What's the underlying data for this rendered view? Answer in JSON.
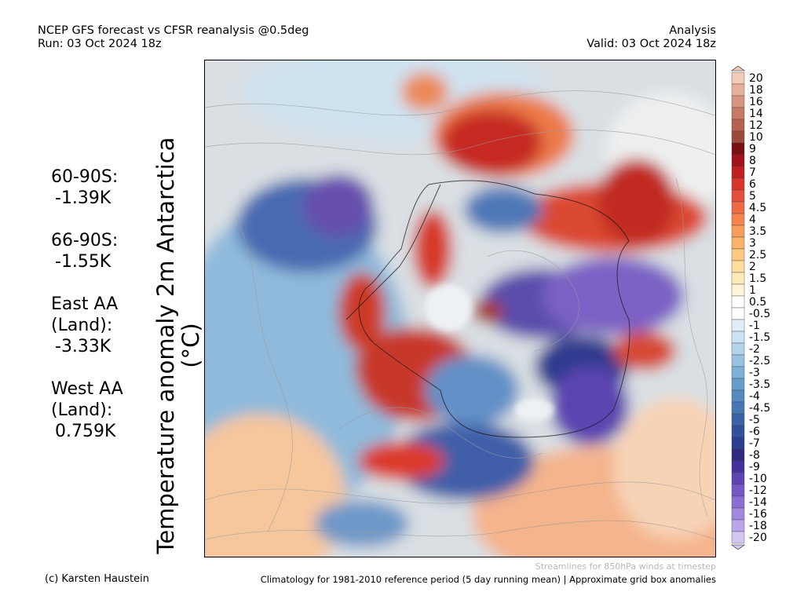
{
  "header": {
    "title_line1": "NCEP GFS forecast vs CFSR reanalysis @0.5deg",
    "title_line2": "Run: 03 Oct 2024 18z",
    "right_line1": "Analysis",
    "right_line2": "Valid: 03 Oct 2024 18z"
  },
  "axis_label": "Temperature anomaly 2m Antarctica (°C)",
  "stats": [
    {
      "label": "60-90S:",
      "value": "-1.39K"
    },
    {
      "label": "66-90S:",
      "value": "-1.55K"
    },
    {
      "label": "East AA (Land):",
      "value": "-3.33K"
    },
    {
      "label": "West AA (Land):",
      "value": "0.759K"
    }
  ],
  "colorbar": {
    "labels": [
      "20",
      "18",
      "16",
      "14",
      "12",
      "10",
      "9",
      "8",
      "7",
      "6",
      "5",
      "4.5",
      "4",
      "3.5",
      "3",
      "2.5",
      "2",
      "1.5",
      "1",
      "0.5",
      "-0.5",
      "-1",
      "-1.5",
      "-2",
      "-2.5",
      "-3",
      "-3.5",
      "-4",
      "-4.5",
      "-5",
      "-6",
      "-7",
      "-8",
      "-9",
      "-10",
      "-12",
      "-14",
      "-16",
      "-18",
      "-20"
    ],
    "colors": [
      "#f2cbb6",
      "#e7b09a",
      "#d8957f",
      "#c77b66",
      "#b4624f",
      "#9c4a39",
      "#7a0f12",
      "#a1131a",
      "#c01f22",
      "#d9352a",
      "#e5503a",
      "#ef6a44",
      "#f4834e",
      "#f89c5a",
      "#fbb36b",
      "#fdc982",
      "#fedc9e",
      "#fee9b9",
      "#fff4d7",
      "#ffffff",
      "#ffffff",
      "#e1eef8",
      "#cce2f2",
      "#b3d3ea",
      "#98c2e1",
      "#7fb0d6",
      "#679dcb",
      "#548ac0",
      "#4477b4",
      "#3a63a5",
      "#31519a",
      "#2b3f8e",
      "#2f2a80",
      "#46309b",
      "#5d43b3",
      "#7558c6",
      "#8a6ed3",
      "#a189dd",
      "#baa6e8",
      "#d3c7f2"
    ]
  },
  "footer": {
    "credit": "(c) Karsten Haustein",
    "note": "Streamlines for 850hPa winds at timestep",
    "climatology": "Climatology for 1981-2010 reference period (5 day running mean) | Approximate grid box anomalies"
  }
}
